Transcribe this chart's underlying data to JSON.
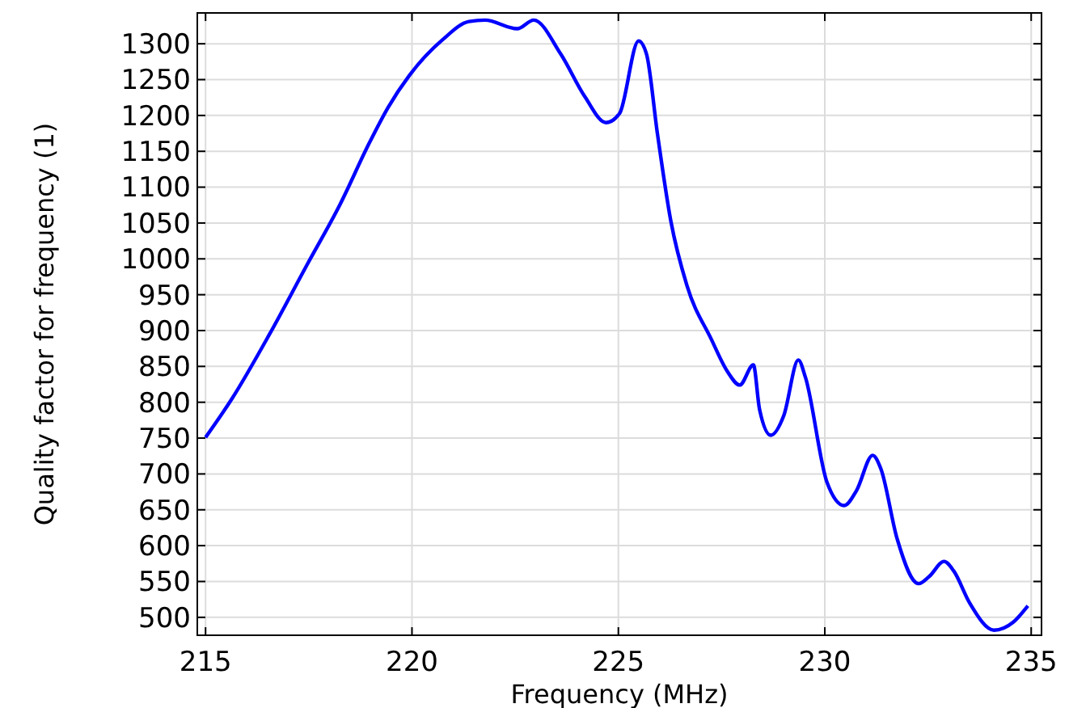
{
  "chart_data": {
    "type": "line",
    "xlabel": "Frequency (MHz)",
    "ylabel": "Quality factor for frequency (1)",
    "xlim": [
      214.8,
      235.25
    ],
    "ylim": [
      475,
      1343
    ],
    "xticks": [
      215,
      220,
      225,
      230,
      235
    ],
    "yticks": [
      500,
      550,
      600,
      650,
      700,
      750,
      800,
      850,
      900,
      950,
      1000,
      1050,
      1100,
      1150,
      1200,
      1250,
      1300
    ],
    "grid": true,
    "series": [
      {
        "color": "#0000ff",
        "x": [
          215,
          215.64,
          216.55,
          217.47,
          218.25,
          218.97,
          219.42,
          219.94,
          220.73,
          221.38,
          221.77,
          222.55,
          222.95,
          223.6,
          224.19,
          224.7,
          225.03,
          225.49,
          225.68,
          225.95,
          226.27,
          226.66,
          227.25,
          227.64,
          227.94,
          228.27,
          228.42,
          228.69,
          229.01,
          229.36,
          229.53,
          230.05,
          230.47,
          230.77,
          231.16,
          231.36,
          231.75,
          232.27,
          232.53,
          232.89,
          233.12,
          233.51,
          234.1,
          234.56,
          234.92
        ],
        "values": [
          751,
          805,
          895,
          993,
          1075,
          1162,
          1211,
          1256,
          1305,
          1331,
          1333,
          1321,
          1333,
          1286,
          1226,
          1190,
          1203,
          1304,
          1286,
          1173,
          1053,
          963,
          888,
          843,
          824,
          852,
          790,
          754,
          782,
          859,
          835,
          689,
          656,
          677,
          726,
          707,
          610,
          547,
          557,
          578,
          565,
          520,
          482,
          493,
          516
        ]
      }
    ]
  }
}
